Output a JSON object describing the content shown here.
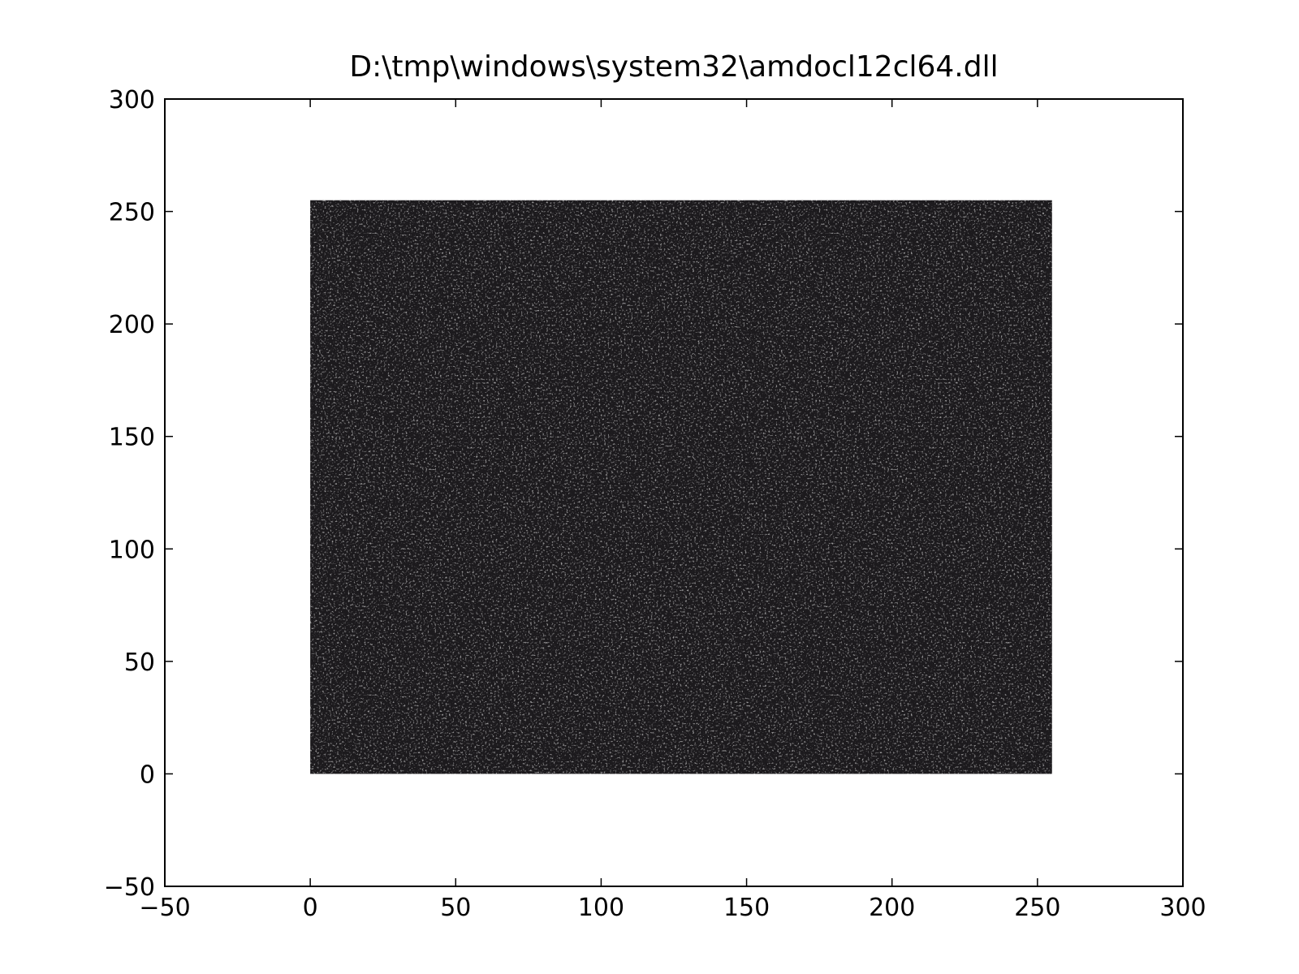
{
  "chart_data": {
    "type": "image",
    "title": "D:\\tmp\\windows\\system32\\amdocl12cl64.dll",
    "xrange": [
      0,
      255
    ],
    "yrange": [
      0,
      255
    ],
    "color": "#1c1a1d",
    "xlim": [
      -50,
      300
    ],
    "ylim": [
      -50,
      300
    ],
    "xticks": [
      {
        "value": -50,
        "label": "−50"
      },
      0,
      50,
      100,
      150,
      200,
      250,
      300
    ],
    "yticks": [
      {
        "value": -50,
        "label": "−50"
      },
      0,
      50,
      100,
      150,
      200,
      250,
      300
    ]
  }
}
